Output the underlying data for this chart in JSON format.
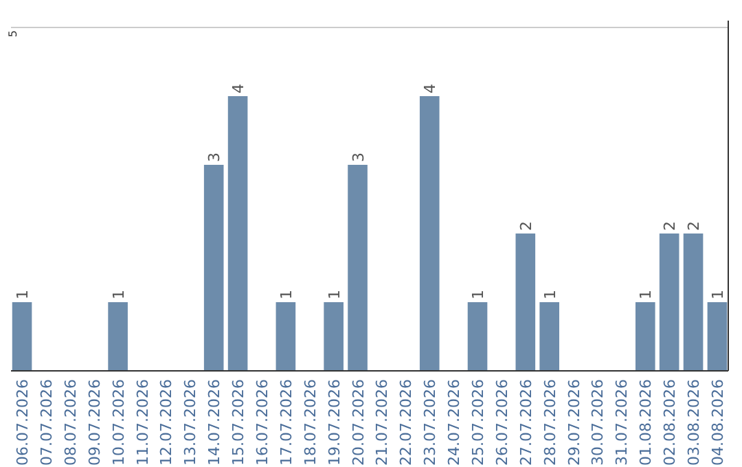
{
  "chart_data": {
    "type": "bar",
    "categories": [
      "06.07.2026",
      "07.07.2026",
      "08.07.2026",
      "09.07.2026",
      "10.07.2026",
      "11.07.2026",
      "12.07.2026",
      "13.07.2026",
      "14.07.2026",
      "15.07.2026",
      "16.07.2026",
      "17.07.2026",
      "18.07.2026",
      "19.07.2026",
      "20.07.2026",
      "21.07.2026",
      "22.07.2026",
      "23.07.2026",
      "24.07.2026",
      "25.07.2026",
      "26.07.2026",
      "27.07.2026",
      "28.07.2026",
      "29.07.2026",
      "30.07.2026",
      "31.07.2026",
      "01.08.2026",
      "02.08.2026",
      "03.08.2026",
      "04.08.2026"
    ],
    "values": [
      1,
      0,
      0,
      0,
      1,
      0,
      0,
      0,
      3,
      4,
      0,
      1,
      0,
      1,
      3,
      0,
      0,
      4,
      0,
      1,
      0,
      2,
      1,
      0,
      0,
      0,
      1,
      2,
      2,
      1
    ],
    "value_labels": [
      "1",
      null,
      null,
      null,
      "1",
      null,
      null,
      null,
      "3",
      "4",
      null,
      "1",
      null,
      "1",
      "3",
      null,
      null,
      "4",
      null,
      "1",
      null,
      "2",
      "1",
      null,
      null,
      null,
      "1",
      "2",
      "2",
      "1"
    ],
    "color": "#6d8cab",
    "ylim": [
      0,
      5
    ],
    "yticks": [
      5
    ],
    "ref_lines": [
      {
        "axis": "y",
        "value": 5,
        "color": "#cccccc"
      }
    ]
  }
}
